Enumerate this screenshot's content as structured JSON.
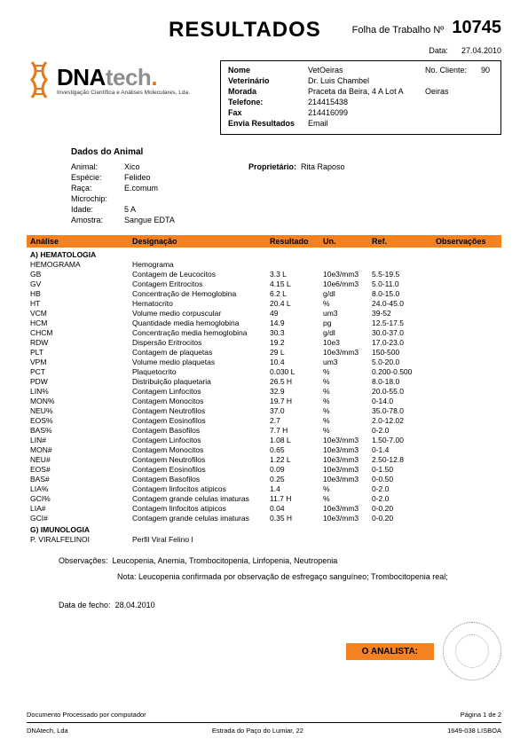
{
  "header": {
    "title": "RESULTADOS",
    "worksheet_label": "Folha de Trabalho Nº",
    "worksheet_num": "10745",
    "date_label": "Data:",
    "date": "27.04.2010"
  },
  "logo": {
    "dna": "DNA",
    "tech": "tech",
    "dot": ".",
    "tagline": "Investigação Científica e Análises Moleculares, Lda."
  },
  "client": {
    "labels": {
      "nome": "Nome",
      "veterinario": "Veterinário",
      "morada": "Morada",
      "telefone": "Telefone:",
      "fax": "Fax",
      "envia": "Envia Resultados",
      "no_cliente": "No. Cliente:"
    },
    "nome": "VetOeiras",
    "veterinario": "Dr. Luis Chambel",
    "morada": "Praceta da Beira, 4 A Lot A",
    "cidade": "Oeiras",
    "telefone": "214415438",
    "fax": "214416099",
    "envia": "Email",
    "no_cliente": "90"
  },
  "animal": {
    "section_title": "Dados do Animal",
    "labels": {
      "animal": "Animal:",
      "especie": "Espécie:",
      "raca": "Raça:",
      "microchip": "Microchip:",
      "idade": "Idade:",
      "amostra": "Amostra:",
      "proprietario": "Proprietário:"
    },
    "animal": "Xico",
    "especie": "Felideo",
    "raca": "E.comum",
    "microchip": "",
    "idade": "5 A",
    "amostra": "Sangue EDTA",
    "proprietario": "Rita Raposo"
  },
  "columns": {
    "analise": "Análise",
    "designacao": "Designação",
    "resultado": "Resultado",
    "un": "Un.",
    "ref": "Ref.",
    "obs": "Observações"
  },
  "sections": [
    {
      "title": "A) HEMATOLOGIA",
      "rows": [
        {
          "a": "HEMOGRAMA",
          "d": "Hemograma",
          "r": "",
          "u": "",
          "f": ""
        },
        {
          "a": "GB",
          "d": "Contagem de Leucocitos",
          "r": "3.3 L",
          "u": "10e3/mm3",
          "f": "5.5-19.5"
        },
        {
          "a": "GV",
          "d": "Contagem Eritrocitos",
          "r": "4.15 L",
          "u": "10e6/mm3",
          "f": "5.0-11.0"
        },
        {
          "a": "HB",
          "d": "Concentração de Hemoglobina",
          "r": "6.2 L",
          "u": "g/dl",
          "f": "8.0-15.0"
        },
        {
          "a": "HT",
          "d": "Hematocrito",
          "r": "20.4 L",
          "u": "%",
          "f": "24.0-45.0"
        },
        {
          "a": "VCM",
          "d": "Volume medio corpuscular",
          "r": "49",
          "u": "um3",
          "f": "39-52"
        },
        {
          "a": "HCM",
          "d": "Quantidade media hemoglobina",
          "r": "14.9",
          "u": "pg",
          "f": "12.5-17.5"
        },
        {
          "a": "CHCM",
          "d": "Concentração media hemoglobina",
          "r": "30.3",
          "u": "g/dl",
          "f": "30.0-37.0"
        },
        {
          "a": "RDW",
          "d": "Dispersão Eritrocitos",
          "r": "19.2",
          "u": "10e3",
          "f": "17.0-23.0"
        },
        {
          "a": "PLT",
          "d": "Contagem de plaquetas",
          "r": "29 L",
          "u": "10e3/mm3",
          "f": "150-500"
        },
        {
          "a": "VPM",
          "d": "Volume medio plaquetas",
          "r": "10.4",
          "u": "um3",
          "f": "5.0-20.0"
        },
        {
          "a": "PCT",
          "d": "Plaquetocrito",
          "r": "0.030 L",
          "u": "%",
          "f": "0.200-0.500"
        },
        {
          "a": "PDW",
          "d": "Distribuição plaquetaria",
          "r": "26.5 H",
          "u": "%",
          "f": "8.0-18.0"
        },
        {
          "a": "LIN%",
          "d": "Contagem Linfocitos",
          "r": "32.9",
          "u": "%",
          "f": "20.0-55.0"
        },
        {
          "a": "MON%",
          "d": "Contagem Monocitos",
          "r": "19.7 H",
          "u": "%",
          "f": "0-14.0"
        },
        {
          "a": "NEU%",
          "d": "Contagem Neutrofilos",
          "r": "37.0",
          "u": "%",
          "f": "35.0-78.0"
        },
        {
          "a": "EOS%",
          "d": "Contagem Eosinofilos",
          "r": "2.7",
          "u": "%",
          "f": "2.0-12.02"
        },
        {
          "a": "BAS%",
          "d": "Contagem Basofilos",
          "r": "7.7 H",
          "u": "%",
          "f": "0-2.0"
        },
        {
          "a": "LIN#",
          "d": "Contagem Linfocitos",
          "r": "1.08 L",
          "u": "10e3/mm3",
          "f": "1.50-7.00"
        },
        {
          "a": "MON#",
          "d": "Contagem Monocitos",
          "r": "0.65",
          "u": "10e3/mm3",
          "f": "0-1.4"
        },
        {
          "a": "NEU#",
          "d": "Contagem Neutrofilos",
          "r": "1.22 L",
          "u": "10e3/mm3",
          "f": "2.50-12.8"
        },
        {
          "a": "EOS#",
          "d": "Contagem Eosinofilos",
          "r": "0.09",
          "u": "10e3/mm3",
          "f": "0-1.50"
        },
        {
          "a": "BAS#",
          "d": "Contagem Basofilos",
          "r": "0.25",
          "u": "10e3/mm3",
          "f": "0-0.50"
        },
        {
          "a": "LIA%",
          "d": "Contagem linfocitos atipicos",
          "r": "1.4",
          "u": "%",
          "f": "0-2.0"
        },
        {
          "a": "GCI%",
          "d": "Contagem grande celulas imaturas",
          "r": "11.7 H",
          "u": "%",
          "f": "0-2.0"
        },
        {
          "a": "LIA#",
          "d": "Contagem linfocitos atipicos",
          "r": "0.04",
          "u": "10e3/mm3",
          "f": "0-0.20"
        },
        {
          "a": "GCI#",
          "d": "Contagem grande celulas imaturas",
          "r": "0.35 H",
          "u": "10e3/mm3",
          "f": "0-0.20"
        }
      ]
    },
    {
      "title": "G) IMUNOLOGIA",
      "rows": [
        {
          "a": "P. VIRALFELINOI",
          "d": "Perfil Viral Felino I",
          "r": "",
          "u": "",
          "f": ""
        }
      ]
    }
  ],
  "observations": {
    "label": "Observações:",
    "line1": "Leucopenia, Anemia, Trombocitopenia, Linfopenia, Neutropenia",
    "line2": "Nota: Leucopenia confirmada por observação de esfregaço sanguíneo; Trombocitopenia real;"
  },
  "close": {
    "label": "Data de fecho:",
    "date": "28.04.2010"
  },
  "analyst_label": "O ANALISTA:",
  "footer": {
    "processed": "Documento Processado por computador",
    "page": "Página 1 de 2",
    "company": "DNAtech, Lda",
    "address": "Estrada do Paço do Lumiar, 22",
    "postal": "1649-038 LISBOA"
  },
  "colors": {
    "accent": "#f58220",
    "logo_orange": "#e67817",
    "logo_gray": "#8f8f8f"
  }
}
